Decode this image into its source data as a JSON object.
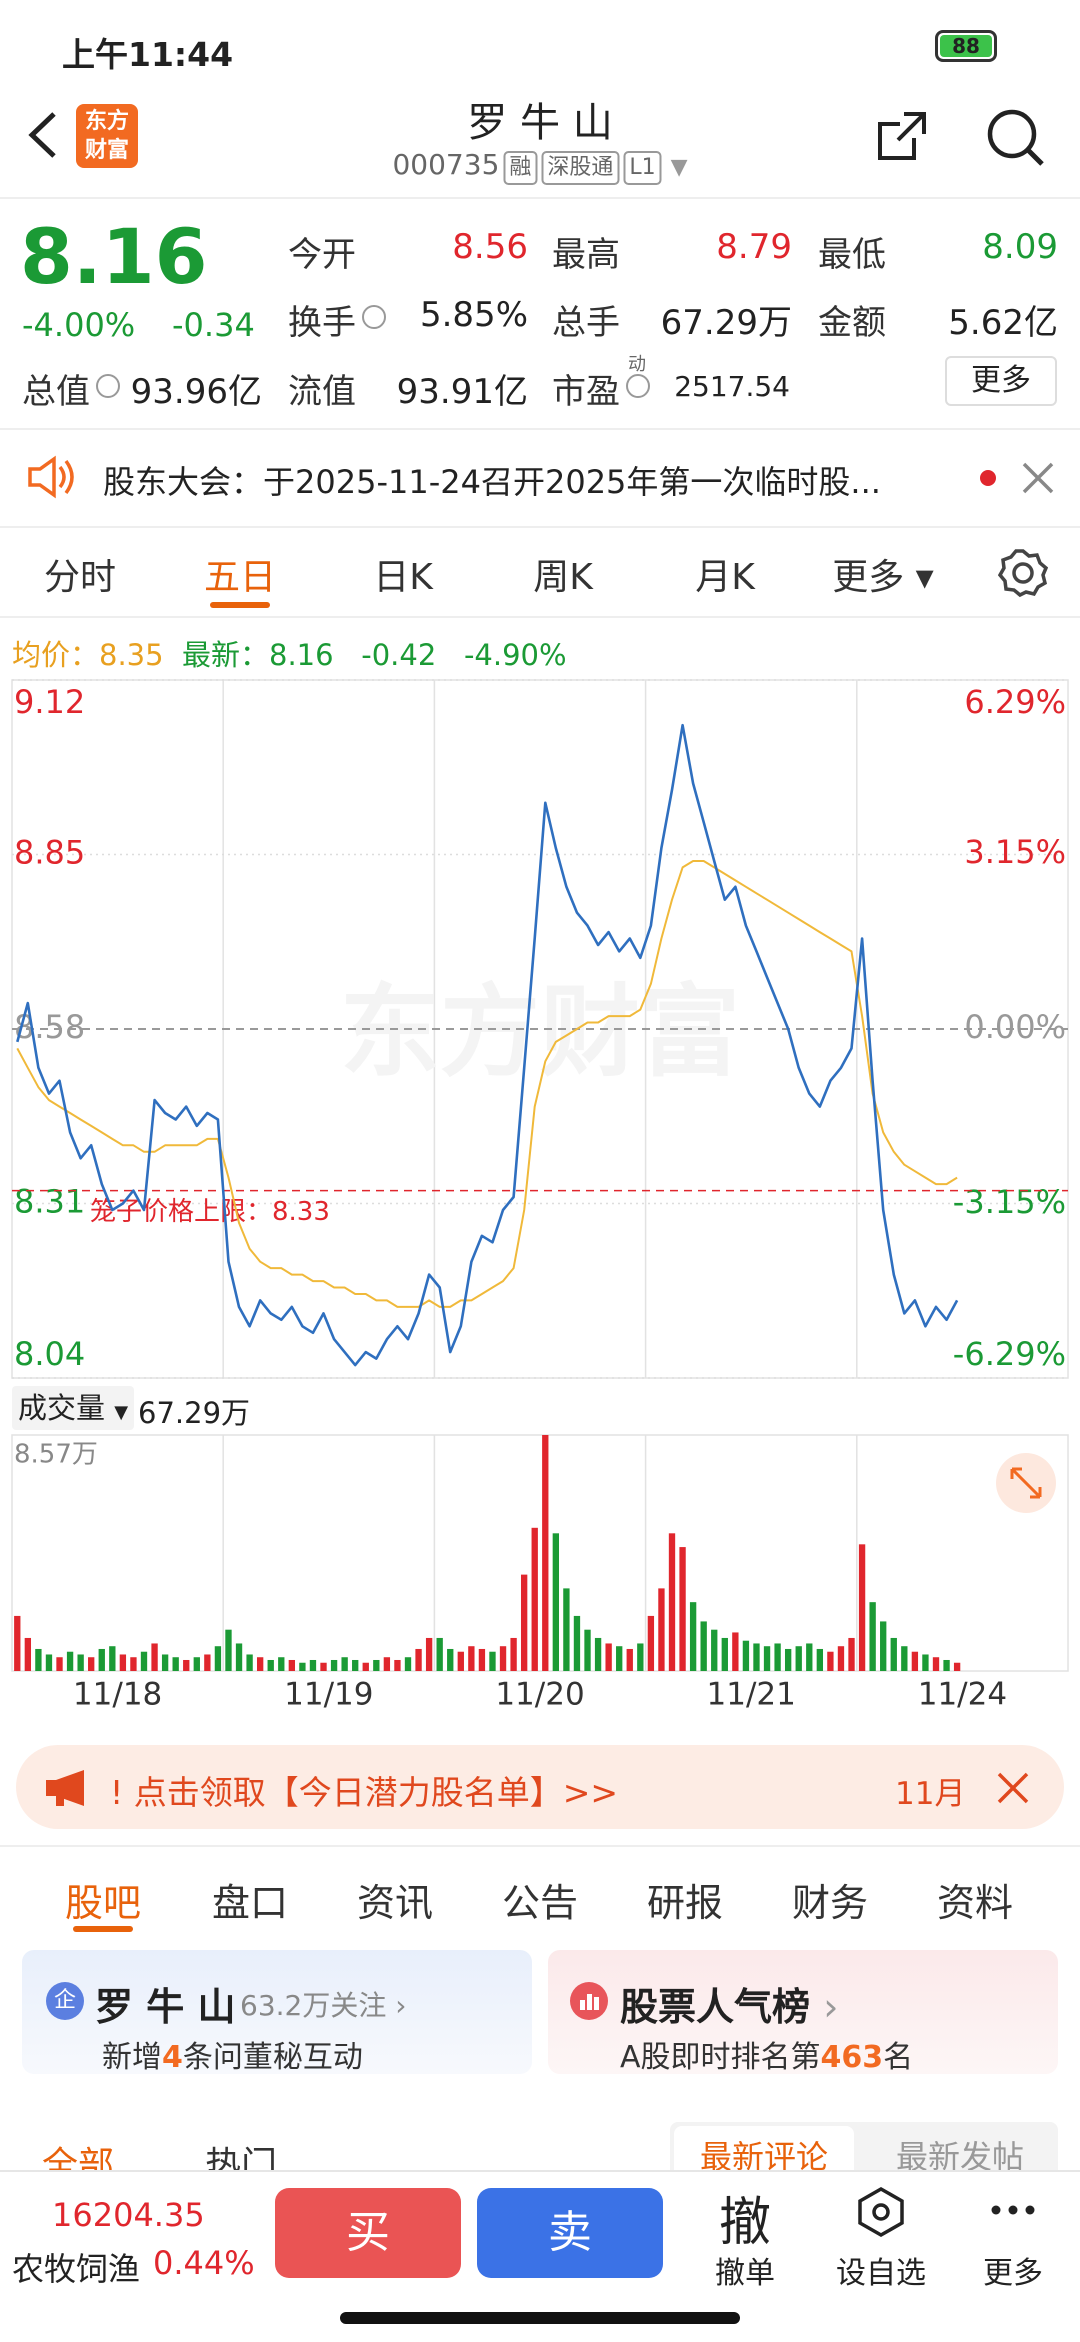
{
  "status_bar": {
    "time": "上午11:44",
    "battery": "88"
  },
  "header": {
    "logo": [
      "东方",
      "财富"
    ],
    "title": "罗 牛 山",
    "code": "000735",
    "badges": [
      "融",
      "深股通",
      "L1"
    ]
  },
  "quote": {
    "price": "8.16",
    "change_pct": "-4.00%",
    "change": "-0.34",
    "color": "#1b9a35",
    "stats": [
      {
        "label": "今开",
        "value": "8.56",
        "color": "#e0262d"
      },
      {
        "label": "最高",
        "value": "8.79",
        "color": "#e0262d"
      },
      {
        "label": "最低",
        "value": "8.09",
        "color": "#1b9a35"
      },
      {
        "label": "换手",
        "value": "5.85%",
        "info": true
      },
      {
        "label": "总手",
        "value": "67.29万"
      },
      {
        "label": "金额",
        "value": "5.62亿"
      },
      {
        "label": "总值",
        "value": "93.96亿",
        "info": true
      },
      {
        "label": "流值",
        "value": "93.91亿"
      },
      {
        "label": "市盈",
        "value": "2517.54",
        "superscript": "动",
        "info": true
      }
    ],
    "more": "更多"
  },
  "notice": "股东大会：于2025-11-24召开2025年第一次临时股...",
  "period_tabs": {
    "items": [
      "分时",
      "五日",
      "日K",
      "周K",
      "月K",
      "更多"
    ],
    "active": 1
  },
  "chart_info": {
    "avg_label": "均价：8.35",
    "latest_label": "最新：8.16",
    "change": "-0.42",
    "change_pct": "-4.90%"
  },
  "chart_data": [
    {
      "type": "line",
      "watermark": "东方财富",
      "categories": [
        "11/18",
        "11/19",
        "11/20",
        "11/21",
        "11/24"
      ],
      "series": [
        {
          "color": "#2f6fbf",
          "values": [
            [
              8.56,
              8.62,
              8.52,
              8.48,
              8.5,
              8.42,
              8.38,
              8.4,
              8.34,
              8.3,
              8.31,
              8.33,
              8.3,
              8.47,
              8.45,
              8.44,
              8.46,
              8.43,
              8.45,
              8.44
            ],
            [
              8.22,
              8.15,
              8.12,
              8.16,
              8.14,
              8.13,
              8.15,
              8.12,
              8.11,
              8.14,
              8.1,
              8.08,
              8.06,
              8.08,
              8.07,
              8.1,
              8.12,
              8.1,
              8.14,
              8.2
            ],
            [
              8.18,
              8.08,
              8.12,
              8.22,
              8.26,
              8.25,
              8.3,
              8.32,
              8.52,
              8.72,
              8.93,
              8.86,
              8.8,
              8.76,
              8.74,
              8.71,
              8.73,
              8.7,
              8.72,
              8.69
            ],
            [
              8.74,
              8.86,
              8.95,
              9.05,
              8.96,
              8.9,
              8.84,
              8.78,
              8.8,
              8.74,
              8.7,
              8.66,
              8.62,
              8.58,
              8.52,
              8.48,
              8.46,
              8.5,
              8.52,
              8.55
            ],
            [
              8.72,
              8.5,
              8.3,
              8.2,
              8.14,
              8.16,
              8.12,
              8.15,
              8.13,
              8.16
            ]
          ]
        },
        {
          "color": "#f0b93a",
          "values": [
            [
              8.55,
              8.52,
              8.49,
              8.47,
              8.46,
              8.45,
              8.44,
              8.43,
              8.42,
              8.41,
              8.4,
              8.4,
              8.39,
              8.39,
              8.4,
              8.4,
              8.4,
              8.4,
              8.41,
              8.41
            ],
            [
              8.35,
              8.28,
              8.24,
              8.22,
              8.21,
              8.21,
              8.2,
              8.2,
              8.19,
              8.19,
              8.18,
              8.18,
              8.17,
              8.17,
              8.16,
              8.16,
              8.15,
              8.15,
              8.15,
              8.16
            ],
            [
              8.15,
              8.15,
              8.16,
              8.16,
              8.17,
              8.18,
              8.19,
              8.21,
              8.3,
              8.46,
              8.53,
              8.56,
              8.57,
              8.58,
              8.59,
              8.59,
              8.6,
              8.6,
              8.6,
              8.61
            ],
            [
              8.65,
              8.72,
              8.78,
              8.83,
              8.84,
              8.84,
              8.83,
              8.82,
              8.81,
              8.8,
              8.79,
              8.78,
              8.77,
              8.76,
              8.75,
              8.74,
              8.73,
              8.72,
              8.71,
              8.7
            ],
            [
              8.6,
              8.48,
              8.42,
              8.39,
              8.37,
              8.36,
              8.35,
              8.34,
              8.34,
              8.35
            ]
          ]
        }
      ],
      "ylim": [
        8.04,
        9.12
      ],
      "yticks": [
        8.04,
        8.31,
        8.58,
        8.85,
        9.12
      ],
      "y2lim": [
        -6.29,
        6.29
      ],
      "y2ticks": [
        {
          "value": -6.29,
          "label": "-6.29%"
        },
        {
          "value": -3.15,
          "label": "-3.15%"
        },
        {
          "value": 0,
          "label": "0.00%"
        },
        {
          "value": 3.15,
          "label": "3.15%"
        },
        {
          "value": 6.29,
          "label": "6.29%"
        }
      ],
      "reference_line": {
        "label": "笼子价格上限：8.33",
        "value": 8.33,
        "color": "#e0262d"
      }
    },
    {
      "type": "bar",
      "title": "成交量",
      "total": "67.29万",
      "up_color": "#e0262d",
      "down_color": "#1b9a35",
      "values": [
        [
          2.0,
          1.2,
          0.8,
          0.6,
          0.5,
          0.7,
          0.6,
          0.5,
          0.8,
          0.9,
          0.6,
          0.5,
          0.7,
          1.0,
          0.6,
          0.5,
          0.4,
          0.5,
          0.6,
          0.9
        ],
        [
          1.5,
          1.0,
          0.6,
          0.5,
          0.4,
          0.5,
          0.4,
          0.3,
          0.4,
          0.3,
          0.4,
          0.5,
          0.4,
          0.3,
          0.4,
          0.5,
          0.4,
          0.5,
          0.8,
          1.2
        ],
        [
          1.2,
          0.8,
          0.7,
          0.9,
          0.8,
          0.7,
          0.9,
          1.2,
          3.5,
          5.2,
          8.57,
          5.0,
          3.0,
          2.0,
          1.5,
          1.2,
          1.0,
          0.9,
          0.8,
          1.0
        ],
        [
          2.0,
          3.0,
          5.0,
          4.5,
          2.5,
          1.8,
          1.5,
          1.2,
          1.4,
          1.1,
          1.0,
          0.9,
          1.0,
          0.8,
          0.9,
          1.0,
          0.8,
          0.7,
          0.9,
          1.2
        ],
        [
          4.6,
          2.5,
          1.8,
          1.2,
          0.9,
          0.7,
          0.6,
          0.5,
          0.4,
          0.3
        ]
      ],
      "ylim": [
        0,
        8.57
      ],
      "yticks": [
        {
          "value": 8.57,
          "label": "8.57万"
        }
      ]
    }
  ],
  "promo": {
    "text": "! 点击领取【今日潜力股名单】>>",
    "date": "11月"
  },
  "section_tabs": {
    "items": [
      "股吧",
      "盘口",
      "资讯",
      "公告",
      "研报",
      "财务",
      "资料"
    ],
    "active": 0
  },
  "cards": [
    {
      "icon": "企",
      "title": "罗 牛 山",
      "follow": "63.2万关注",
      "line": [
        "新增",
        "4",
        "条问董秘互动"
      ]
    },
    {
      "title": "股票人气榜",
      "line": [
        "A股即时排名第",
        "463",
        "名"
      ]
    }
  ],
  "sub_tabs": {
    "left": [
      "全部",
      "热门"
    ],
    "right": [
      "最新评论",
      "最新发帖"
    ]
  },
  "bottom_bar": {
    "index_value": "16204.35",
    "sector": "农牧饲渔",
    "sector_change": "0.44%",
    "buy": "买",
    "sell": "卖",
    "cancel_icon": "撤",
    "cancel": "撤单",
    "watch": "设自选",
    "more": "更多"
  }
}
